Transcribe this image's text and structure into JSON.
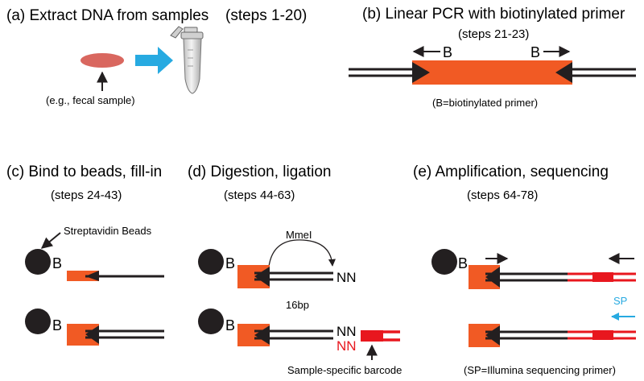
{
  "panels": {
    "a": {
      "title": "(a) Extract DNA from samples",
      "steps": "(steps 1-20)",
      "sample_label": "(e.g., fecal sample)"
    },
    "b": {
      "title": "(b) Linear PCR with biotinylated primer",
      "steps": "(steps 21-23)",
      "primer_label": "B",
      "note": "(B=biotinylated primer)"
    },
    "c": {
      "title": "(c) Bind to beads, fill-in",
      "steps": "(steps 24-43)",
      "bead_label": "Streptavidin Beads",
      "primer_label": "B"
    },
    "d": {
      "title": "(d) Digestion, ligation",
      "steps": "(steps 44-63)",
      "enzyme": "MmeI",
      "length": "16bp",
      "overhang": "NN",
      "barcode_label": "Sample-specific barcode",
      "primer_label": "B"
    },
    "e": {
      "title": "(e) Amplification, sequencing",
      "steps": "(steps 64-78)",
      "sp_label": "SP",
      "note": "(SP=Illumina sequencing primer)",
      "primer_label": "B"
    }
  },
  "colors": {
    "orange": "#f15a24",
    "red": "#e8171e",
    "blue": "#27aae1",
    "sample": "#d9675f",
    "black": "#231f20"
  }
}
